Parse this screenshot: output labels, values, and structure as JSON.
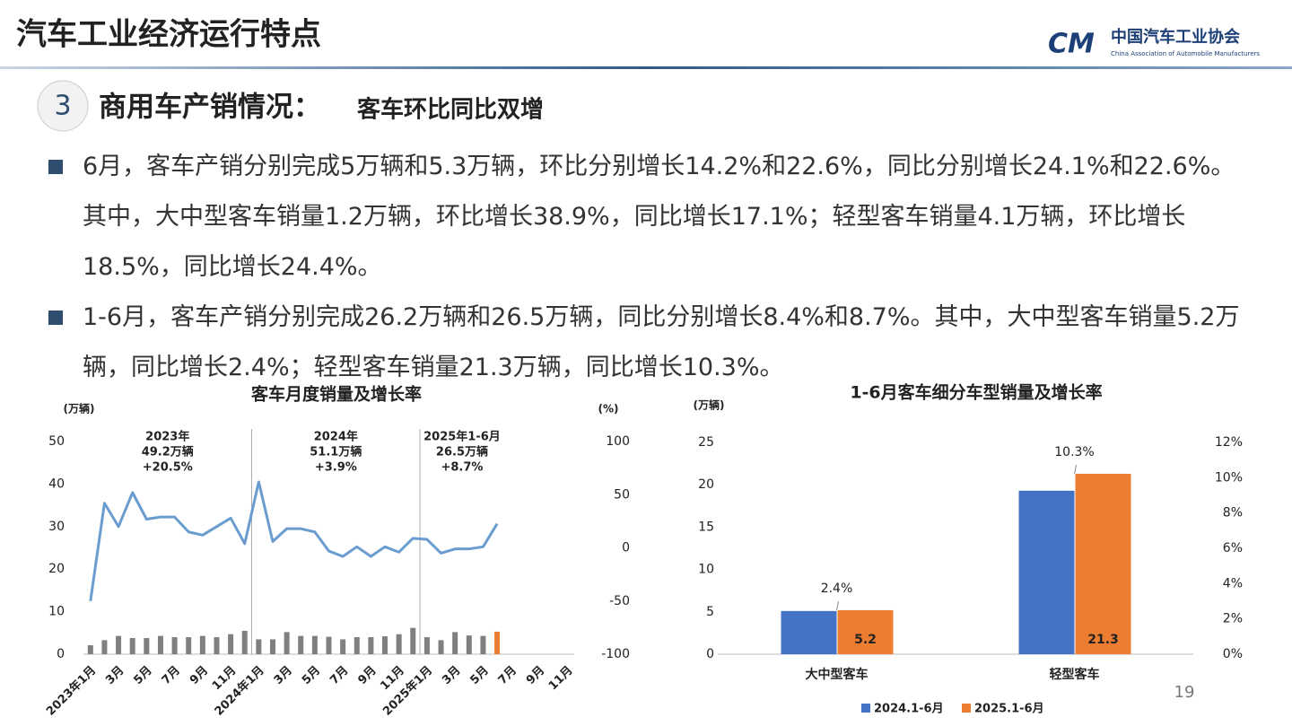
{
  "header": {
    "title": "汽车工业经济运行特点",
    "logo_name": "中国汽车工业协会",
    "logo_subtitle": "China Association of Automobile Manufacturers"
  },
  "section": {
    "number": "3",
    "title": "商用车产销情况：",
    "subtitle": "客车环比同比双增"
  },
  "bullets": [
    "6月，客车产销分别完成5万辆和5.3万辆，环比分别增长14.2%和22.6%，同比分别增长24.1%和22.6%。其中，大中型客车销量1.2万辆，环比增长38.9%，同比增长17.1%；轻型客车销量4.1万辆，环比增长18.5%，同比增长24.4%。",
    "1-6月，客车产销分别完成26.2万辆和26.5万辆，同比分别增长8.4%和8.7%。其中，大中型客车销量5.2万辆，同比增长2.4%；轻型客车销量21.3万辆，同比增长10.3%。"
  ],
  "page_number": "19",
  "chart_data": [
    {
      "type": "bar-line",
      "title": "客车月度销量及增长率",
      "y_label": "(万辆)",
      "y2_label": "(%)",
      "categories": [
        "2023年1月",
        null,
        "3月",
        null,
        "5月",
        null,
        "7月",
        null,
        "9月",
        null,
        "11月",
        null,
        "2024年1月",
        null,
        "3月",
        null,
        "5月",
        null,
        "7月",
        null,
        "9月",
        null,
        "11月",
        null,
        "2025年1月",
        null,
        "3月",
        null,
        "5月",
        null,
        "7月",
        null,
        "9月",
        null,
        "11月"
      ],
      "series": [
        {
          "type": "bar",
          "color": "#7f7f7f",
          "highlight": {
            "index": 29,
            "color": "#ed7d31"
          },
          "values": [
            2.1,
            3.3,
            4.3,
            3.8,
            3.8,
            4.3,
            4.0,
            4.0,
            4.3,
            4.0,
            4.7,
            5.5,
            3.5,
            3.5,
            5.2,
            4.3,
            4.3,
            4.1,
            3.5,
            4.0,
            4.0,
            4.2,
            4.7,
            6.2,
            4.0,
            3.3,
            5.2,
            4.4,
            4.3,
            5.3,
            null,
            null,
            null,
            null,
            null
          ]
        },
        {
          "type": "line",
          "axis": "y2",
          "color": "#6a9ccf",
          "values": [
            -50,
            42,
            20,
            52,
            27,
            29,
            29,
            15,
            12,
            20,
            28,
            4,
            62,
            6,
            18,
            18,
            15,
            -3,
            -8,
            1,
            -8,
            1,
            -4,
            9,
            8,
            -5,
            -1,
            -1,
            1,
            22.6,
            null,
            null,
            null,
            null,
            null
          ]
        }
      ],
      "ylim": [
        0,
        50
      ],
      "yticks": [
        0,
        10,
        20,
        30,
        40,
        50
      ],
      "y2lim": [
        -100,
        100
      ],
      "y2ticks": [
        -100,
        -50,
        0,
        50,
        100
      ],
      "annotations": [
        {
          "lines": [
            "2023年",
            "49.2万辆",
            "+20.5%"
          ]
        },
        {
          "lines": [
            "2024年",
            "51.1万辆",
            "+3.9%"
          ]
        },
        {
          "lines": [
            "2025年1-6月",
            "26.5万辆",
            "+8.7%"
          ]
        }
      ]
    },
    {
      "type": "bar",
      "title": "1-6月客车细分车型销量及增长率",
      "y_label": "(万辆)",
      "categories": [
        "大中型客车",
        "轻型客车"
      ],
      "series": [
        {
          "name": "2024.1-6月",
          "color": "#4472c4",
          "values": [
            5.1,
            19.3
          ]
        },
        {
          "name": "2025.1-6月",
          "color": "#ed7d31",
          "values": [
            5.2,
            21.3
          ],
          "show_labels": true
        }
      ],
      "growth": {
        "values": [
          2.4,
          10.3
        ],
        "value_labels": [
          "2.4%",
          "10.3%"
        ]
      },
      "ylim": [
        0,
        25
      ],
      "yticks": [
        0,
        5,
        10,
        15,
        20,
        25
      ],
      "y2lim": [
        0,
        12
      ],
      "y2ticks": [
        {
          "value": 0,
          "label": "0%"
        },
        {
          "value": 2,
          "label": "2%"
        },
        {
          "value": 4,
          "label": "4%"
        },
        {
          "value": 6,
          "label": "6%"
        },
        {
          "value": 8,
          "label": "8%"
        },
        {
          "value": 10,
          "label": "10%"
        },
        {
          "value": 12,
          "label": "12%"
        }
      ],
      "legend": "bottom"
    }
  ]
}
